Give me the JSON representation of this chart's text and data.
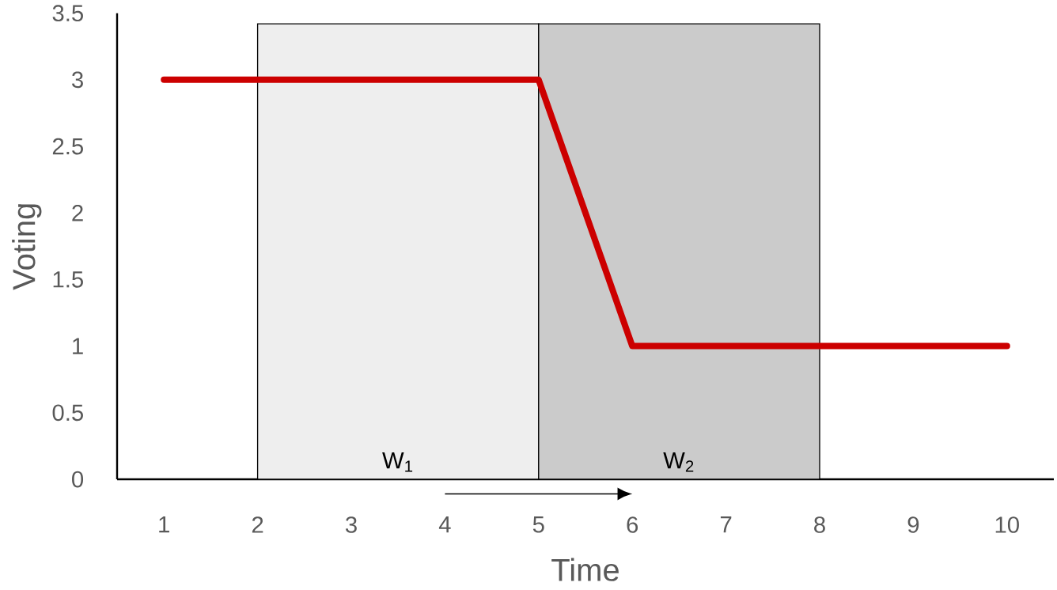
{
  "chart_data": {
    "type": "line",
    "xlabel": "Time",
    "ylabel": "Voting",
    "x": [
      1,
      2,
      3,
      4,
      5,
      6,
      7,
      8,
      9,
      10
    ],
    "series": [
      {
        "color": "#cc0000",
        "values": [
          3,
          3,
          3,
          3,
          3,
          1,
          1,
          1,
          1,
          1
        ]
      }
    ],
    "xlim": [
      0.5,
      10.5
    ],
    "xticks": [
      1,
      2,
      3,
      4,
      5,
      6,
      7,
      8,
      9,
      10
    ],
    "ylim": [
      0,
      3.5
    ],
    "yticks": [
      0,
      0.5,
      1,
      1.5,
      2,
      2.5,
      3,
      3.5
    ],
    "bands": [
      {
        "axis": "x",
        "from": 2,
        "to": 5,
        "label": "W$_{1}$",
        "color": "#eeeeee"
      },
      {
        "axis": "x",
        "from": 5,
        "to": 8,
        "label": "W$_{2}$",
        "color": "#cbcbcb"
      }
    ],
    "grid": false,
    "marker": "none",
    "line_style": "solid"
  }
}
